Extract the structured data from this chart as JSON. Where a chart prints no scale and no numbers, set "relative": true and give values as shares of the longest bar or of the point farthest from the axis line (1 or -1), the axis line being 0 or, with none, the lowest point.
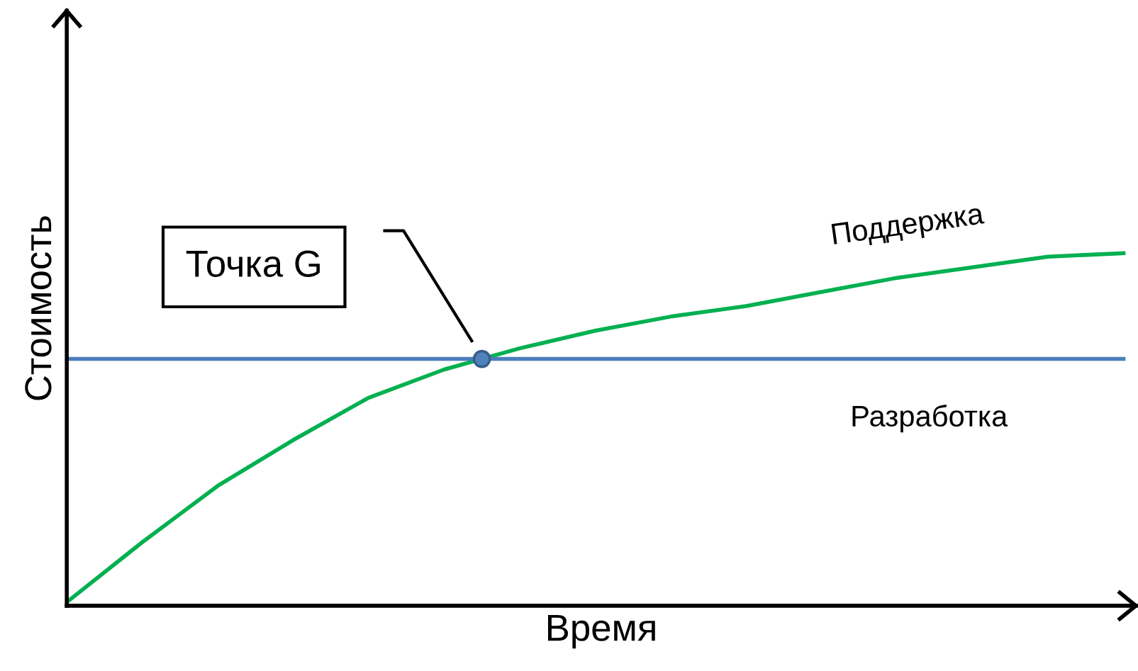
{
  "chart_data": {
    "type": "line",
    "relative": true,
    "xlabel": "Время",
    "ylabel": "Стоимость",
    "categories": [
      null,
      null,
      null,
      null,
      null,
      null,
      null,
      null,
      null,
      null,
      null,
      null,
      null,
      null,
      null
    ],
    "series": [
      {
        "name": "Поддержка",
        "color": "#00b050",
        "values": [
          0.01,
          0.18,
          0.34,
          0.47,
          0.59,
          0.67,
          0.73,
          0.78,
          0.82,
          0.85,
          0.89,
          0.93,
          0.96,
          0.99,
          1.0
        ]
      },
      {
        "name": "Разработка",
        "color": "#4a7ebb",
        "values": [
          0.7,
          0.7,
          0.7,
          0.7,
          0.7,
          0.7,
          0.7,
          0.7,
          0.7,
          0.7,
          0.7,
          0.7,
          0.7,
          0.7,
          0.7
        ]
      }
    ],
    "annotations": [
      {
        "text": "Точка G",
        "y": 0.7
      }
    ],
    "legend": false,
    "marker": "none",
    "line_style": "solid"
  }
}
